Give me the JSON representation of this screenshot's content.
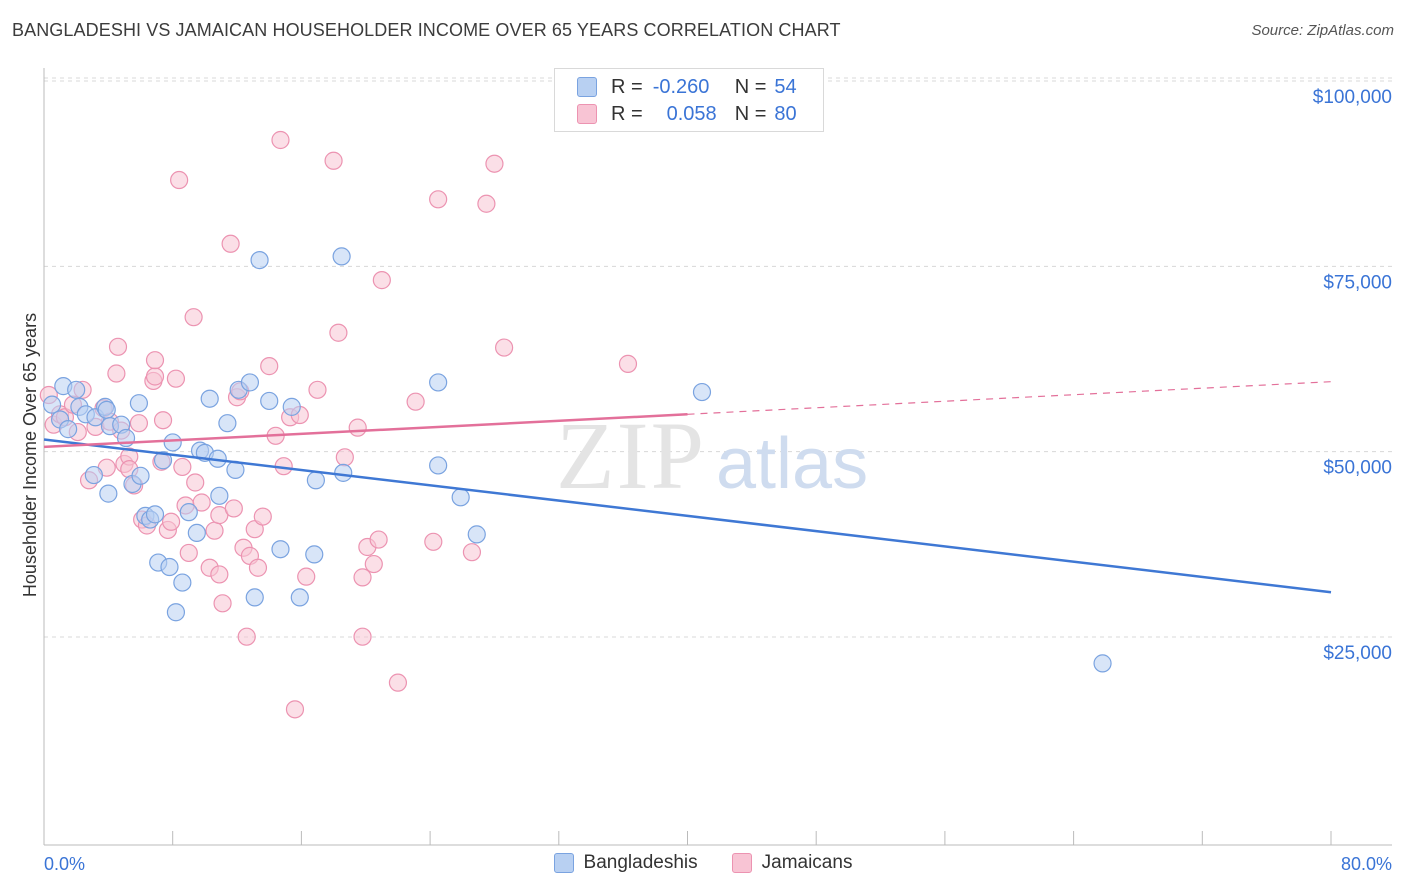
{
  "header": {
    "title": "BANGLADESHI VS JAMAICAN HOUSEHOLDER INCOME OVER 65 YEARS CORRELATION CHART",
    "source": "Source: ZipAtlas.com"
  },
  "watermark": {
    "zip": "ZIP",
    "atlas": "atlas"
  },
  "legend": {
    "r_label": "R =",
    "n_label": "N =",
    "rows": [
      {
        "r": "-0.260",
        "n": "54",
        "color": "#a9c7f0"
      },
      {
        "r": "0.058",
        "n": "80",
        "color": "#f5b5ca"
      }
    ]
  },
  "bottom_legend": [
    "Bangladeshis",
    "Jamaicans"
  ],
  "colors": {
    "blue_fill": "#b8d0f2",
    "blue_stroke": "#7aa3e0",
    "blue_line": "#3f78d4",
    "pink_fill": "#f8c4d4",
    "pink_stroke": "#ec93b1",
    "pink_line": "#e3709a",
    "tick_text": "#3a74d6",
    "grid": "#d8d8d8"
  },
  "chart_data": {
    "type": "scatter",
    "title": "BANGLADESHI VS JAMAICAN HOUSEHOLDER INCOME OVER 65 YEARS CORRELATION CHART",
    "xlabel": "",
    "ylabel": "Householder Income Over 65 years",
    "xlim": [
      0,
      80
    ],
    "ylim": [
      0,
      105000
    ],
    "x_tick_labels": [
      "0.0%",
      "80.0%"
    ],
    "y_ticks": [
      25000,
      50000,
      75000,
      100000
    ],
    "y_tick_labels": [
      "$25,000",
      "$50,000",
      "$75,000",
      "$100,000"
    ],
    "grid": true,
    "legend_position": "top-center",
    "series": [
      {
        "name": "Bangladeshis",
        "r": -0.26,
        "n": 54,
        "trend": {
          "x": [
            0,
            80
          ],
          "y": [
            53800,
            33200
          ]
        },
        "points": [
          [
            0.5,
            58500
          ],
          [
            1.0,
            56500
          ],
          [
            1.2,
            61000
          ],
          [
            1.5,
            55200
          ],
          [
            2.0,
            60500
          ],
          [
            2.2,
            58200
          ],
          [
            2.6,
            57200
          ],
          [
            3.1,
            49000
          ],
          [
            3.2,
            56800
          ],
          [
            3.8,
            58200
          ],
          [
            3.9,
            57800
          ],
          [
            4.1,
            55600
          ],
          [
            4.8,
            55800
          ],
          [
            5.1,
            54000
          ],
          [
            4.0,
            46500
          ],
          [
            5.5,
            47800
          ],
          [
            5.9,
            58700
          ],
          [
            6.0,
            48900
          ],
          [
            6.3,
            43500
          ],
          [
            6.6,
            43000
          ],
          [
            6.9,
            43700
          ],
          [
            7.1,
            37200
          ],
          [
            7.4,
            51000
          ],
          [
            7.8,
            36600
          ],
          [
            8.0,
            53400
          ],
          [
            8.2,
            30500
          ],
          [
            8.6,
            34500
          ],
          [
            9.0,
            44000
          ],
          [
            9.5,
            41200
          ],
          [
            9.7,
            52300
          ],
          [
            10.0,
            52000
          ],
          [
            10.3,
            59300
          ],
          [
            10.8,
            51200
          ],
          [
            10.9,
            46200
          ],
          [
            11.4,
            56000
          ],
          [
            11.9,
            49700
          ],
          [
            12.1,
            60500
          ],
          [
            12.8,
            61500
          ],
          [
            13.1,
            32500
          ],
          [
            13.4,
            78000
          ],
          [
            14.0,
            59000
          ],
          [
            14.7,
            39000
          ],
          [
            15.4,
            58200
          ],
          [
            15.9,
            32500
          ],
          [
            16.8,
            38300
          ],
          [
            16.9,
            48300
          ],
          [
            18.5,
            78500
          ],
          [
            18.6,
            49300
          ],
          [
            24.5,
            61500
          ],
          [
            24.5,
            50300
          ],
          [
            25.9,
            46000
          ],
          [
            26.9,
            41000
          ],
          [
            40.9,
            60200
          ],
          [
            65.8,
            23600
          ]
        ]
      },
      {
        "name": "Jamaicans",
        "r": 0.058,
        "n": 80,
        "trend": {
          "x": [
            0,
            40
          ],
          "y": [
            52800,
            57200
          ]
        },
        "trend_dashed": {
          "x": [
            40,
            80
          ],
          "y": [
            57200,
            61600
          ]
        },
        "points": [
          [
            0.3,
            59800
          ],
          [
            0.6,
            55800
          ],
          [
            1.0,
            57200
          ],
          [
            1.3,
            56800
          ],
          [
            1.8,
            58500
          ],
          [
            2.1,
            54800
          ],
          [
            2.4,
            60500
          ],
          [
            2.8,
            48300
          ],
          [
            3.2,
            55500
          ],
          [
            3.7,
            58000
          ],
          [
            3.9,
            50000
          ],
          [
            4.1,
            56200
          ],
          [
            4.5,
            62700
          ],
          [
            4.8,
            55000
          ],
          [
            5.0,
            50500
          ],
          [
            5.3,
            51500
          ],
          [
            4.6,
            66300
          ],
          [
            5.6,
            47600
          ],
          [
            5.9,
            56000
          ],
          [
            5.3,
            49800
          ],
          [
            6.1,
            43000
          ],
          [
            6.4,
            42200
          ],
          [
            6.8,
            61700
          ],
          [
            6.9,
            62300
          ],
          [
            6.9,
            64500
          ],
          [
            7.3,
            50800
          ],
          [
            7.4,
            56400
          ],
          [
            7.7,
            41600
          ],
          [
            7.9,
            42700
          ],
          [
            8.2,
            62000
          ],
          [
            8.6,
            50100
          ],
          [
            8.8,
            44900
          ],
          [
            9.0,
            38500
          ],
          [
            9.4,
            48000
          ],
          [
            9.8,
            45300
          ],
          [
            8.4,
            88800
          ],
          [
            9.3,
            70300
          ],
          [
            10.3,
            36500
          ],
          [
            10.6,
            41500
          ],
          [
            10.9,
            43600
          ],
          [
            10.9,
            35600
          ],
          [
            11.1,
            31700
          ],
          [
            11.6,
            80200
          ],
          [
            11.8,
            44500
          ],
          [
            12.0,
            59500
          ],
          [
            12.2,
            60300
          ],
          [
            12.4,
            39200
          ],
          [
            12.6,
            27200
          ],
          [
            12.8,
            38100
          ],
          [
            13.1,
            41700
          ],
          [
            13.3,
            36500
          ],
          [
            13.6,
            43400
          ],
          [
            14.0,
            63700
          ],
          [
            14.4,
            54300
          ],
          [
            14.7,
            94200
          ],
          [
            14.9,
            50200
          ],
          [
            15.3,
            56800
          ],
          [
            15.6,
            17400
          ],
          [
            15.9,
            57100
          ],
          [
            16.3,
            35300
          ],
          [
            17.0,
            60500
          ],
          [
            18.0,
            91400
          ],
          [
            18.3,
            68200
          ],
          [
            18.7,
            51400
          ],
          [
            19.5,
            55400
          ],
          [
            19.8,
            35200
          ],
          [
            19.8,
            27200
          ],
          [
            20.1,
            39300
          ],
          [
            20.5,
            37000
          ],
          [
            20.8,
            40300
          ],
          [
            21.0,
            75300
          ],
          [
            22.0,
            21000
          ],
          [
            23.1,
            58900
          ],
          [
            24.2,
            40000
          ],
          [
            24.5,
            86200
          ],
          [
            26.6,
            38600
          ],
          [
            27.5,
            85600
          ],
          [
            28.0,
            91000
          ],
          [
            28.6,
            66200
          ],
          [
            36.3,
            64000
          ]
        ]
      }
    ]
  }
}
